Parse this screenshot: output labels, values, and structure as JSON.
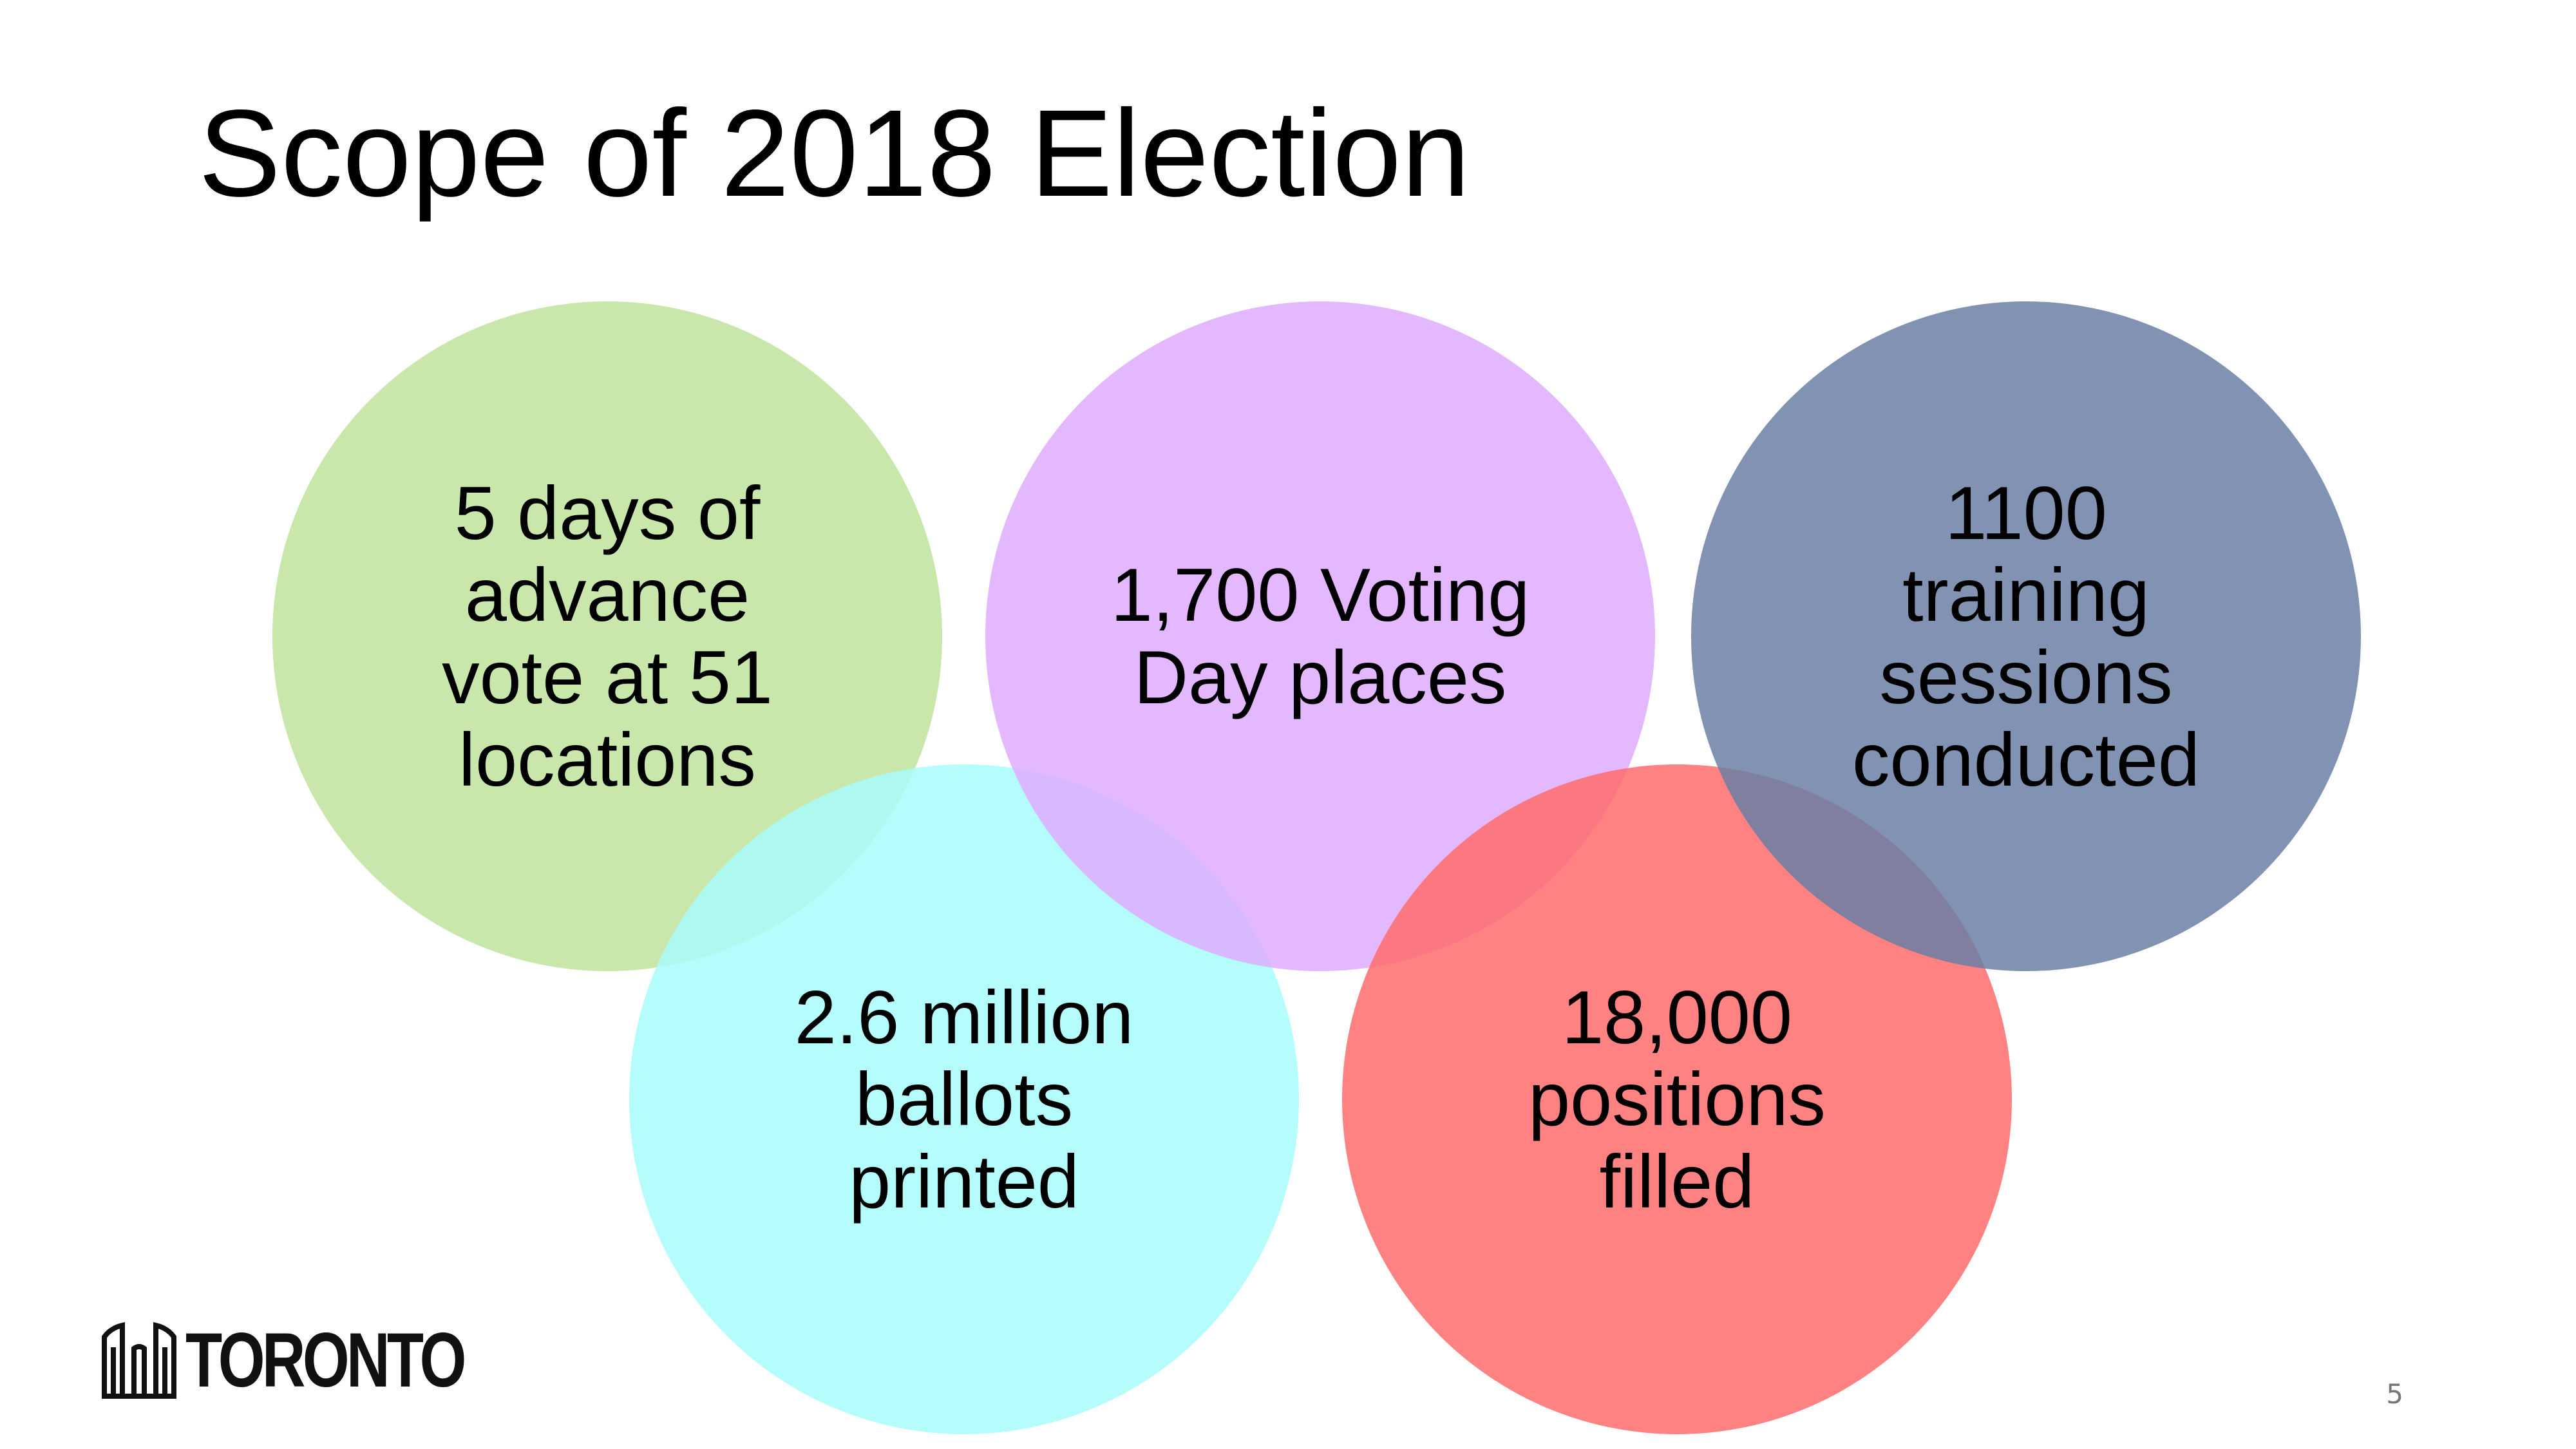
{
  "slide": {
    "title": "Scope of 2018 Election",
    "page_number": "5",
    "logo_text": "TORONTO"
  },
  "circles": [
    {
      "id": "advance-vote",
      "label": "5 days of advance vote at 51 locations",
      "color": "#c2e49f"
    },
    {
      "id": "ballots",
      "label": "2.6 million ballots printed",
      "color": "#a8fbfc"
    },
    {
      "id": "voting-places",
      "label": "1,700 Voting Day places",
      "color": "#deacff"
    },
    {
      "id": "positions",
      "label": "18,000 positions filled",
      "color": "#ff6c6c"
    },
    {
      "id": "training",
      "label": "1100 training sessions conducted",
      "color": "#6b7fa4"
    }
  ]
}
